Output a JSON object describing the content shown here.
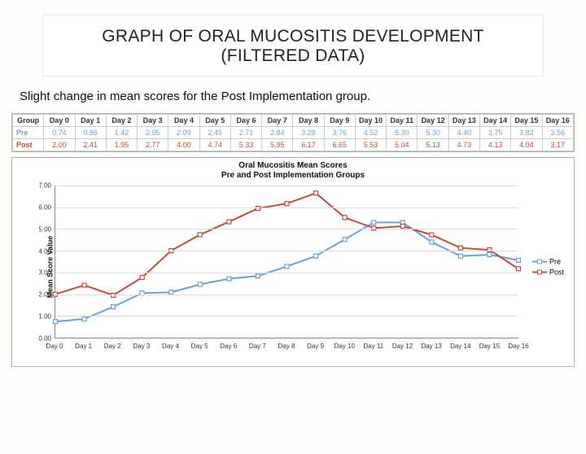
{
  "title_line1": "GRAPH OF ORAL MUCOSITIS DEVELOPMENT",
  "title_line2": "(FILTERED DATA)",
  "subtitle": "Slight change in mean scores for the Post Implementation group.",
  "table": {
    "header": [
      "Group",
      "Day 0",
      "Day 1",
      "Day 2",
      "Day 3",
      "Day 4",
      "Day 5",
      "Day 6",
      "Day 7",
      "Day 8",
      "Day 9",
      "Day 10",
      "Day 11",
      "Day 12",
      "Day 13",
      "Day 14",
      "Day 15",
      "Day 16"
    ],
    "rows": [
      {
        "label": "Pre",
        "cells": [
          "0.74",
          "0.86",
          "1.42",
          "2.05",
          "2.09",
          "2.45",
          "2.71",
          "2.84",
          "3.28",
          "3.76",
          "4.52",
          "5.30",
          "5.30",
          "4.40",
          "3.75",
          "3.82",
          "3.56"
        ],
        "color": "#6aa0d8"
      },
      {
        "label": "Post",
        "cells": [
          "2.00",
          "2.41",
          "1.95",
          "2.77",
          "4.00",
          "4.74",
          "5.33",
          "5.95",
          "6.17",
          "6.65",
          "5.53",
          "5.04",
          "5.13",
          "4.73",
          "4.13",
          "4.04",
          "3.17"
        ],
        "color": "#c44a3a"
      }
    ]
  },
  "chart": {
    "type": "line",
    "title_line1": "Oral Mucositis Mean Scores",
    "title_line2": "Pre and Post Implementation Groups",
    "ylabel": "Mean Score Value",
    "ylim": [
      0,
      7.0
    ],
    "yticks": [
      0.0,
      1.0,
      2.0,
      3.0,
      4.0,
      5.0,
      6.0,
      7.0
    ],
    "ytick_labels": [
      "0.00",
      "1.00",
      "2.00",
      "3.00",
      "4.00",
      "5.00",
      "6.00",
      "7.00"
    ],
    "categories": [
      "Day 0",
      "Day 1",
      "Day 2",
      "Day 3",
      "Day 4",
      "Day 5",
      "Day 6",
      "Day 7",
      "Day 8",
      "Day 9",
      "Day 10",
      "Day 11",
      "Day 12",
      "Day 13",
      "Day 14",
      "Day 15",
      "Day 16"
    ],
    "series": [
      {
        "name": "Pre",
        "color": "#6aa0d8",
        "marker": "square",
        "values": [
          0.74,
          0.86,
          1.42,
          2.05,
          2.09,
          2.45,
          2.71,
          2.84,
          3.28,
          3.76,
          4.52,
          5.3,
          5.3,
          4.4,
          3.75,
          3.82,
          3.56
        ]
      },
      {
        "name": "Post",
        "color": "#c44a3a",
        "marker": "square",
        "values": [
          2.0,
          2.41,
          1.95,
          2.77,
          4.0,
          4.74,
          5.33,
          5.95,
          6.17,
          6.65,
          5.53,
          5.04,
          5.13,
          4.73,
          4.13,
          4.04,
          3.17
        ]
      }
    ],
    "legend": [
      {
        "label": "Pre",
        "color": "#6aa0d8"
      },
      {
        "label": "Post",
        "color": "#c44a3a"
      }
    ],
    "background_color": "#ffffff",
    "grid_color": "#dedede",
    "line_width": 2,
    "marker_size": 5,
    "title_fontsize": 10,
    "label_fontsize": 9,
    "tick_fontsize": 8
  }
}
